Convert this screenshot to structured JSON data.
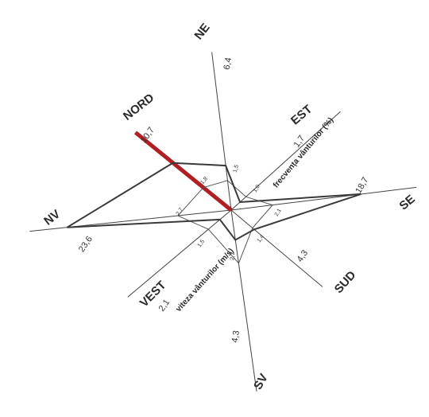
{
  "chart_data": {
    "type": "radar",
    "title": "",
    "directions": [
      "NORD",
      "NE",
      "EST",
      "SE",
      "SUD",
      "SV",
      "VEST",
      "NV"
    ],
    "series": [
      {
        "name": "frecvența vânturilor (%)",
        "values": [
          10.7,
          6.4,
          1.7,
          18.7,
          4.3,
          4.3,
          2.1,
          23.6
        ],
        "labels": [
          "10,7",
          "6,4",
          "1,7",
          "18,7",
          "4,3",
          "4,3",
          "2,1",
          "23,6"
        ]
      },
      {
        "name": "viteza vânturilor (m/s)",
        "values": [
          1.8,
          1.5,
          1.0,
          2.1,
          1.4,
          2.7,
          1.5,
          2.7
        ],
        "labels": [
          "1,8",
          "1,5",
          "1,0",
          "2,1",
          "1,4",
          "2,7",
          "1,5",
          "2,7"
        ]
      }
    ],
    "highlight_direction": "NORD",
    "colors": {
      "frequency_line": "#3a3a3a",
      "speed_line": "#555555",
      "axis": "#444444",
      "highlight": "#b01f24"
    }
  }
}
